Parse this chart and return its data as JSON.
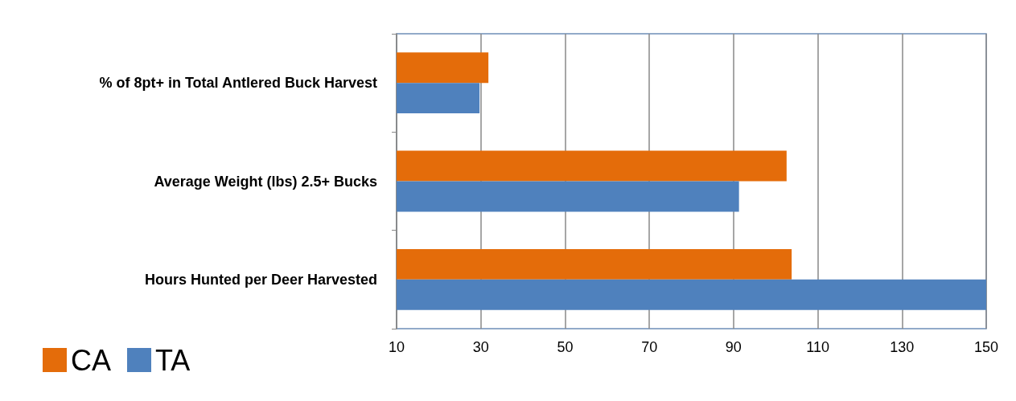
{
  "chart_data": {
    "type": "bar",
    "orientation": "horizontal",
    "categories": [
      "% of 8pt+ in Total Antlered Buck Harvest",
      "Average Weight (lbs) 2.5+ Bucks",
      "Hours Hunted per Deer Harvested"
    ],
    "series": [
      {
        "name": "CA",
        "color": "#e46c0a",
        "values": [
          31.8,
          102.6,
          103.8
        ]
      },
      {
        "name": "TA",
        "color": "#4f81bd",
        "values": [
          29.7,
          91.3,
          150
        ]
      }
    ],
    "xlim": [
      10,
      150
    ],
    "xticks": [
      10,
      30,
      50,
      70,
      90,
      110,
      130,
      150
    ],
    "grid": "x",
    "legend": "bottom left"
  }
}
